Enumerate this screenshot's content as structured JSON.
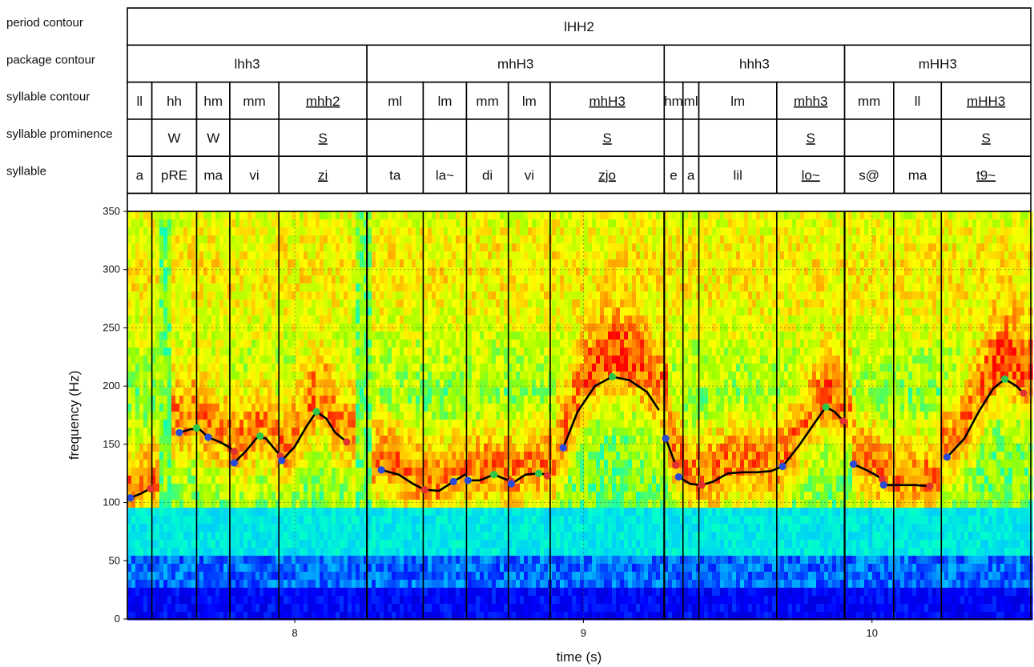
{
  "chart_data": {
    "type": "heatmap",
    "title": "",
    "xlabel": "time (s)",
    "ylabel": "frequency (Hz)",
    "xlim": [
      7.42,
      10.55
    ],
    "ylim": [
      0,
      350
    ],
    "x_ticks": [
      8,
      9,
      10
    ],
    "y_ticks": [
      0,
      50,
      100,
      150,
      200,
      250,
      300,
      350
    ],
    "grid": true,
    "colormap": [
      "#00008b",
      "#0000ff",
      "#00c8ff",
      "#00ffcc",
      "#99ff00",
      "#ffff00",
      "#ff9900",
      "#ff0000"
    ],
    "tiers": [
      {
        "label": "period contour",
        "cells": [
          {
            "start": 7.42,
            "end": 10.55,
            "text": "lHH2",
            "underline": false
          }
        ]
      },
      {
        "label": "package contour",
        "cells": [
          {
            "start": 7.42,
            "end": 8.25,
            "text": "lhh3",
            "underline": false
          },
          {
            "start": 8.25,
            "end": 9.28,
            "text": "mhH3",
            "underline": false
          },
          {
            "start": 9.28,
            "end": 9.905,
            "text": "hhh3",
            "underline": false
          },
          {
            "start": 9.905,
            "end": 10.55,
            "text": "mHH3",
            "underline": false
          }
        ]
      },
      {
        "label": "syllable contour",
        "cells": [
          {
            "start": 7.42,
            "end": 7.505,
            "text": "ll",
            "underline": false
          },
          {
            "start": 7.505,
            "end": 7.66,
            "text": "hh",
            "underline": false
          },
          {
            "start": 7.66,
            "end": 7.775,
            "text": "hm",
            "underline": false
          },
          {
            "start": 7.775,
            "end": 7.945,
            "text": "mm",
            "underline": false
          },
          {
            "start": 7.945,
            "end": 8.25,
            "text": "mhh2",
            "underline": true
          },
          {
            "start": 8.25,
            "end": 8.445,
            "text": "ml",
            "underline": false
          },
          {
            "start": 8.445,
            "end": 8.595,
            "text": "lm",
            "underline": false
          },
          {
            "start": 8.595,
            "end": 8.74,
            "text": "mm",
            "underline": false
          },
          {
            "start": 8.74,
            "end": 8.885,
            "text": "lm",
            "underline": false
          },
          {
            "start": 8.885,
            "end": 9.28,
            "text": "mhH3",
            "underline": true
          },
          {
            "start": 9.28,
            "end": 9.345,
            "text": "hm",
            "underline": false
          },
          {
            "start": 9.345,
            "end": 9.4,
            "text": "ml",
            "underline": false
          },
          {
            "start": 9.4,
            "end": 9.67,
            "text": "lm",
            "underline": false
          },
          {
            "start": 9.67,
            "end": 9.905,
            "text": "mhh3",
            "underline": true
          },
          {
            "start": 9.905,
            "end": 10.075,
            "text": "mm",
            "underline": false
          },
          {
            "start": 10.075,
            "end": 10.24,
            "text": "ll",
            "underline": false
          },
          {
            "start": 10.24,
            "end": 10.55,
            "text": "mHH3",
            "underline": true
          }
        ]
      },
      {
        "label": "syllable prominence",
        "cells": [
          {
            "start": 7.42,
            "end": 7.505,
            "text": "",
            "underline": false
          },
          {
            "start": 7.505,
            "end": 7.66,
            "text": "W",
            "underline": false
          },
          {
            "start": 7.66,
            "end": 7.775,
            "text": "W",
            "underline": false
          },
          {
            "start": 7.775,
            "end": 7.945,
            "text": "",
            "underline": false
          },
          {
            "start": 7.945,
            "end": 8.25,
            "text": "S",
            "underline": true
          },
          {
            "start": 8.25,
            "end": 8.445,
            "text": "",
            "underline": false
          },
          {
            "start": 8.445,
            "end": 8.595,
            "text": "",
            "underline": false
          },
          {
            "start": 8.595,
            "end": 8.74,
            "text": "",
            "underline": false
          },
          {
            "start": 8.74,
            "end": 8.885,
            "text": "",
            "underline": false
          },
          {
            "start": 8.885,
            "end": 9.28,
            "text": "S",
            "underline": true
          },
          {
            "start": 9.28,
            "end": 9.345,
            "text": "",
            "underline": false
          },
          {
            "start": 9.345,
            "end": 9.4,
            "text": "",
            "underline": false
          },
          {
            "start": 9.4,
            "end": 9.67,
            "text": "",
            "underline": false
          },
          {
            "start": 9.67,
            "end": 9.905,
            "text": "S",
            "underline": true
          },
          {
            "start": 9.905,
            "end": 10.075,
            "text": "",
            "underline": false
          },
          {
            "start": 10.075,
            "end": 10.24,
            "text": "",
            "underline": false
          },
          {
            "start": 10.24,
            "end": 10.55,
            "text": "S",
            "underline": true
          }
        ]
      },
      {
        "label": "syllable",
        "cells": [
          {
            "start": 7.42,
            "end": 7.505,
            "text": "a",
            "underline": false
          },
          {
            "start": 7.505,
            "end": 7.66,
            "text": "pRE",
            "underline": false
          },
          {
            "start": 7.66,
            "end": 7.775,
            "text": "ma",
            "underline": false
          },
          {
            "start": 7.775,
            "end": 7.945,
            "text": "vi",
            "underline": false
          },
          {
            "start": 7.945,
            "end": 8.25,
            "text": "zi",
            "underline": true
          },
          {
            "start": 8.25,
            "end": 8.445,
            "text": "ta",
            "underline": false
          },
          {
            "start": 8.445,
            "end": 8.595,
            "text": "la~",
            "underline": false
          },
          {
            "start": 8.595,
            "end": 8.74,
            "text": "di",
            "underline": false
          },
          {
            "start": 8.74,
            "end": 8.885,
            "text": "vi",
            "underline": false
          },
          {
            "start": 8.885,
            "end": 9.28,
            "text": "zjo",
            "underline": true
          },
          {
            "start": 9.28,
            "end": 9.345,
            "text": "e",
            "underline": false
          },
          {
            "start": 9.345,
            "end": 9.4,
            "text": "a",
            "underline": false
          },
          {
            "start": 9.4,
            "end": 9.67,
            "text": "lil",
            "underline": false
          },
          {
            "start": 9.67,
            "end": 9.905,
            "text": "lo~",
            "underline": true
          },
          {
            "start": 9.905,
            "end": 10.075,
            "text": "s@",
            "underline": false
          },
          {
            "start": 10.075,
            "end": 10.24,
            "text": "ma",
            "underline": false
          },
          {
            "start": 10.24,
            "end": 10.55,
            "text": "t9~",
            "underline": true
          }
        ]
      }
    ],
    "f0_contours": [
      [
        [
          7.43,
          104
        ],
        [
          7.47,
          108
        ],
        [
          7.5,
          112
        ]
      ],
      [
        [
          7.6,
          160
        ],
        [
          7.64,
          163
        ],
        [
          7.67,
          163
        ],
        [
          7.7,
          156
        ],
        [
          7.74,
          152
        ],
        [
          7.77,
          148
        ],
        [
          7.79,
          144
        ]
      ],
      [
        [
          7.79,
          134
        ],
        [
          7.83,
          144
        ],
        [
          7.87,
          156
        ],
        [
          7.9,
          155
        ],
        [
          7.93,
          146
        ],
        [
          7.95,
          140
        ]
      ],
      [
        [
          7.955,
          136
        ],
        [
          8.0,
          148
        ],
        [
          8.04,
          165
        ],
        [
          8.075,
          178
        ],
        [
          8.11,
          172
        ],
        [
          8.14,
          160
        ],
        [
          8.18,
          152
        ]
      ],
      [
        [
          8.3,
          128
        ],
        [
          8.36,
          124
        ],
        [
          8.41,
          116
        ],
        [
          8.45,
          111
        ],
        [
          8.5,
          110
        ],
        [
          8.55,
          118
        ],
        [
          8.59,
          124
        ]
      ],
      [
        [
          8.6,
          119
        ],
        [
          8.64,
          119
        ],
        [
          8.69,
          124
        ],
        [
          8.73,
          120
        ],
        [
          8.75,
          118
        ]
      ],
      [
        [
          8.75,
          116
        ],
        [
          8.8,
          124
        ],
        [
          8.845,
          125
        ],
        [
          8.875,
          124
        ]
      ],
      [
        [
          8.93,
          147
        ],
        [
          8.98,
          178
        ],
        [
          9.04,
          200
        ],
        [
          9.1,
          208
        ],
        [
          9.16,
          205
        ],
        [
          9.22,
          195
        ],
        [
          9.26,
          180
        ]
      ],
      [
        [
          9.285,
          155
        ],
        [
          9.305,
          142
        ],
        [
          9.32,
          132
        ]
      ],
      [
        [
          9.33,
          122
        ],
        [
          9.37,
          116
        ],
        [
          9.41,
          115
        ],
        [
          9.45,
          118
        ],
        [
          9.5,
          125
        ],
        [
          9.55,
          126
        ],
        [
          9.6,
          126
        ],
        [
          9.65,
          127
        ],
        [
          9.69,
          131
        ],
        [
          9.75,
          150
        ],
        [
          9.8,
          168
        ],
        [
          9.84,
          182
        ],
        [
          9.87,
          178
        ],
        [
          9.9,
          170
        ]
      ],
      [
        [
          9.935,
          133
        ],
        [
          9.98,
          128
        ],
        [
          10.01,
          124
        ],
        [
          10.035,
          120
        ]
      ],
      [
        [
          10.04,
          115
        ],
        [
          10.1,
          115
        ],
        [
          10.15,
          115
        ],
        [
          10.2,
          114
        ]
      ],
      [
        [
          10.26,
          139
        ],
        [
          10.32,
          155
        ],
        [
          10.37,
          178
        ],
        [
          10.42,
          198
        ],
        [
          10.46,
          206
        ],
        [
          10.5,
          200
        ],
        [
          10.525,
          194
        ]
      ]
    ],
    "contour_markers": [
      {
        "x": 7.43,
        "y": 104,
        "color": "#2a4bd7"
      },
      {
        "x": 7.5,
        "y": 112,
        "color": "#e03030"
      },
      {
        "x": 7.6,
        "y": 160,
        "color": "#2a4bd7"
      },
      {
        "x": 7.66,
        "y": 164,
        "color": "#2cc84a"
      },
      {
        "x": 7.7,
        "y": 156,
        "color": "#2a4bd7"
      },
      {
        "x": 7.79,
        "y": 144,
        "color": "#e03030"
      },
      {
        "x": 7.79,
        "y": 134,
        "color": "#2a4bd7"
      },
      {
        "x": 7.88,
        "y": 157,
        "color": "#2cc84a"
      },
      {
        "x": 7.95,
        "y": 140,
        "color": "#e03030"
      },
      {
        "x": 7.955,
        "y": 136,
        "color": "#2a4bd7"
      },
      {
        "x": 8.075,
        "y": 178,
        "color": "#2cc84a"
      },
      {
        "x": 8.18,
        "y": 152,
        "color": "#e03030"
      },
      {
        "x": 8.3,
        "y": 128,
        "color": "#2a4bd7"
      },
      {
        "x": 8.45,
        "y": 111,
        "color": "#e03030"
      },
      {
        "x": 8.55,
        "y": 118,
        "color": "#2a4bd7"
      },
      {
        "x": 8.6,
        "y": 119,
        "color": "#2a4bd7"
      },
      {
        "x": 8.69,
        "y": 124,
        "color": "#2cc84a"
      },
      {
        "x": 8.75,
        "y": 118,
        "color": "#e03030"
      },
      {
        "x": 8.75,
        "y": 116,
        "color": "#2a4bd7"
      },
      {
        "x": 8.845,
        "y": 125,
        "color": "#2cc84a"
      },
      {
        "x": 8.875,
        "y": 123,
        "color": "#e03030"
      },
      {
        "x": 8.93,
        "y": 147,
        "color": "#2a4bd7"
      },
      {
        "x": 9.1,
        "y": 208,
        "color": "#2cc84a"
      },
      {
        "x": 9.285,
        "y": 155,
        "color": "#2a4bd7"
      },
      {
        "x": 9.32,
        "y": 132,
        "color": "#e03030"
      },
      {
        "x": 9.33,
        "y": 122,
        "color": "#2a4bd7"
      },
      {
        "x": 9.41,
        "y": 115,
        "color": "#e03030"
      },
      {
        "x": 9.69,
        "y": 131,
        "color": "#2a4bd7"
      },
      {
        "x": 9.84,
        "y": 182,
        "color": "#2cc84a"
      },
      {
        "x": 9.9,
        "y": 170,
        "color": "#e03030"
      },
      {
        "x": 9.935,
        "y": 133,
        "color": "#2a4bd7"
      },
      {
        "x": 10.035,
        "y": 120,
        "color": "#e03030"
      },
      {
        "x": 10.04,
        "y": 115,
        "color": "#2a4bd7"
      },
      {
        "x": 10.2,
        "y": 114,
        "color": "#e03030"
      },
      {
        "x": 10.26,
        "y": 139,
        "color": "#2a4bd7"
      },
      {
        "x": 10.46,
        "y": 206,
        "color": "#2cc84a"
      },
      {
        "x": 10.525,
        "y": 194,
        "color": "#e03030"
      }
    ]
  }
}
